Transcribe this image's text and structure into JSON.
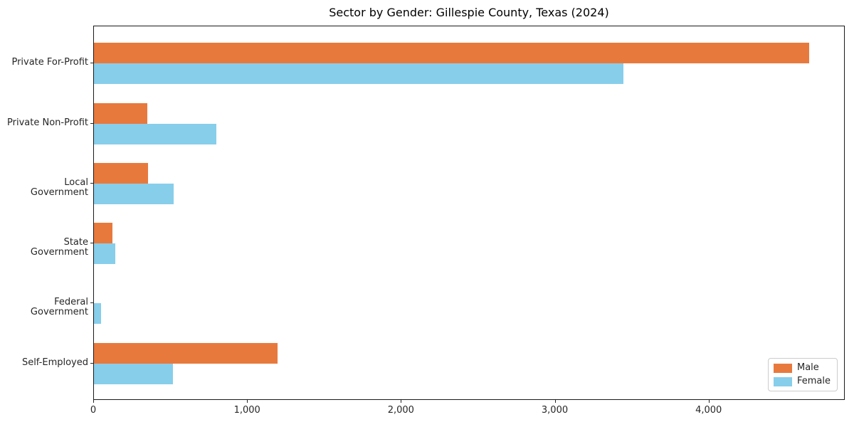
{
  "figure": {
    "background": "#ffffff",
    "spine_color": "#1a1a1a"
  },
  "chart_data": {
    "type": "bar",
    "orientation": "horizontal",
    "title": "Sector by Gender: Gillespie County, Texas (2024)",
    "categories": [
      "Private For-Profit",
      "Private Non-Profit",
      "Local Government",
      "State Government",
      "Federal Government",
      "Self-Employed"
    ],
    "series": [
      {
        "name": "Male",
        "color": "#e8793d",
        "values": [
          4650,
          345,
          350,
          120,
          0,
          1195
        ]
      },
      {
        "name": "Female",
        "color": "#87ceeb",
        "values": [
          3440,
          795,
          520,
          140,
          45,
          515
        ]
      }
    ],
    "xlabel": "",
    "ylabel": "",
    "xlim": [
      0,
      4885
    ],
    "xticks": [
      0,
      1000,
      2000,
      3000,
      4000
    ],
    "xtick_labels": [
      "0",
      "1,000",
      "2,000",
      "3,000",
      "4,000"
    ],
    "grid": false,
    "legend": {
      "position": "lower-right",
      "entries": [
        "Male",
        "Female"
      ]
    }
  }
}
